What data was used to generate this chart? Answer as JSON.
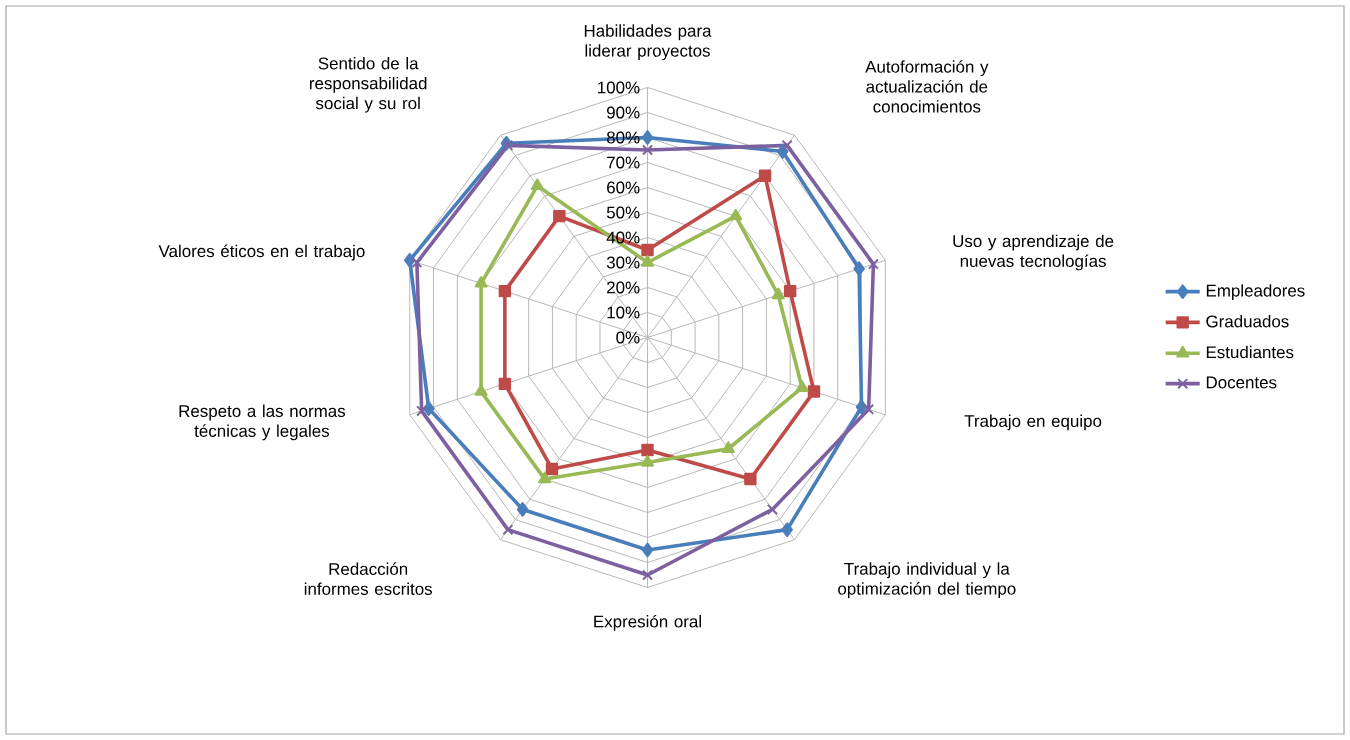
{
  "chart_data": {
    "type": "radar",
    "categories": [
      "Habilidades para liderar proyectos",
      "Autoformación y actualización de conocimientos",
      "Uso y aprendizaje de nuevas tecnologías",
      "Trabajo en equipo",
      "Trabajo individual y la optimización del tiempo",
      "Expresión oral",
      "Redacción informes escritos",
      "Respeto a las normas técnicas y legales",
      "Valores éticos en el trabajo",
      "Sentido de la responsabilidad social y su rol"
    ],
    "series": [
      {
        "name": "Empleadores",
        "color": "#4a7ebb",
        "marker": "diamond",
        "values": [
          80,
          92,
          89,
          90,
          95,
          85,
          85,
          92,
          100,
          96
        ]
      },
      {
        "name": "Graduados",
        "color": "#be4b48",
        "marker": "square",
        "values": [
          35,
          80,
          60,
          70,
          70,
          45,
          65,
          60,
          60,
          60
        ]
      },
      {
        "name": "Estudiantes",
        "color": "#98b954",
        "marker": "triangle",
        "values": [
          30,
          60,
          55,
          65,
          55,
          50,
          70,
          70,
          70,
          75
        ]
      },
      {
        "name": "Docentes",
        "color": "#7d60a0",
        "marker": "cross",
        "values": [
          75,
          95,
          95,
          93,
          85,
          95,
          95,
          95,
          97,
          95
        ]
      }
    ],
    "ylim": [
      0,
      100
    ],
    "yticks": [
      {
        "value": 0,
        "label": "0%"
      },
      {
        "value": 10,
        "label": "10%"
      },
      {
        "value": 20,
        "label": "20%"
      },
      {
        "value": 30,
        "label": "30%"
      },
      {
        "value": 40,
        "label": "40%"
      },
      {
        "value": 50,
        "label": "50%"
      },
      {
        "value": 60,
        "label": "60%"
      },
      {
        "value": 70,
        "label": "70%"
      },
      {
        "value": 80,
        "label": "80%"
      },
      {
        "value": 90,
        "label": "90%"
      },
      {
        "value": 100,
        "label": "100%"
      }
    ],
    "grid": true,
    "legend": "right"
  }
}
